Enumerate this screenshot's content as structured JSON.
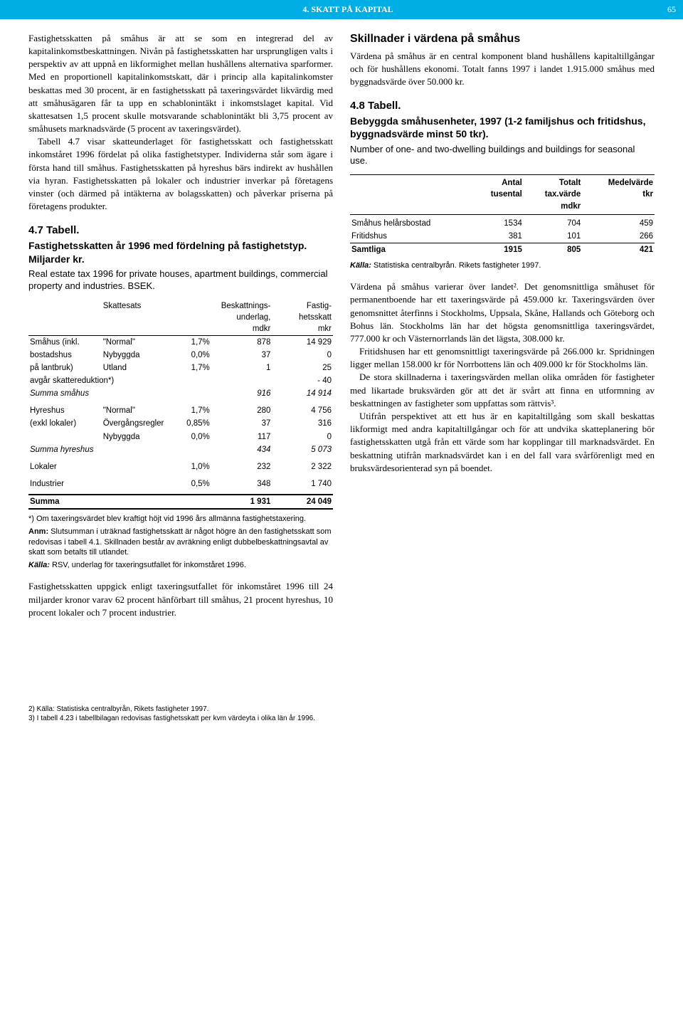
{
  "header": {
    "chapter_title": "4. SKATT PÅ KAPITAL",
    "page_number": "65"
  },
  "left_col": {
    "p1": "Fastighetsskatten på småhus är att se som en integrerad del av kapitalinkomstbeskattningen. Nivån på fastighetsskatten har ursprungligen valts i perspektiv av att uppnå en likformighet mellan hushållens alternativa sparformer. Med en proportionell kapitalinkomstskatt, där i princip alla kapitalinkomster beskattas med 30 procent, är en fastighetsskatt på taxeringsvärdet likvärdig med att småhusägaren får ta upp en schablonintäkt i inkomstslaget kapital. Vid skattesatsen 1,5 procent skulle motsvarande schablonintäkt bli 3,75 procent av småhusets marknadsvärde (5 procent av taxeringsvärdet).",
    "p2": "Tabell 4.7 visar skatteunderlaget för fastighetsskatt och fastighetsskatt inkomståret 1996 fördelat på olika fastighetstyper. Individerna står som ägare i första hand till småhus. Fastighetsskatten på hyreshus bärs indirekt av hushållen via hyran. Fastighetsskatten på lokaler och industrier inverkar på företagens vinster (och därmed på intäkterna av bolagsskatten) och påverkar priserna på företagens produkter.",
    "tbl47": {
      "title": "4.7 Tabell.",
      "subtitle": "Fastighetsskatten år 1996 med fördelning på fastighetstyp. Miljarder kr.",
      "desc": "Real estate tax 1996 for private houses, apartment buildings, commercial property and industries. BSEK.",
      "headers": {
        "c2": "Skattesats",
        "c3": "Beskattnings-\nunderlag,\nmdkr",
        "c4": "Fastig-\nhetsskatt\nmkr"
      },
      "rows": [
        {
          "a": "Småhus (inkl.",
          "b": "\"Normal\"",
          "c": "1,7%",
          "d": "878",
          "e": "14 929"
        },
        {
          "a": "bostadshus",
          "b": "Nybyggda",
          "c": "0,0%",
          "d": "37",
          "e": "0"
        },
        {
          "a": "på lantbruk)",
          "b": "Utland",
          "c": "1,7%",
          "d": "1",
          "e": "25"
        },
        {
          "a": "   avgår skattereduktion*)",
          "b": "",
          "c": "",
          "d": "",
          "e": "- 40",
          "span": 3
        },
        {
          "a": "Summa småhus",
          "b": "",
          "c": "",
          "d": "916",
          "e": "14 914",
          "italic": true,
          "span": 3
        },
        {
          "a": "",
          "b": "",
          "c": "",
          "d": "",
          "e": "",
          "blank": true
        },
        {
          "a": "Hyreshus",
          "b": "\"Normal\"",
          "c": "1,7%",
          "d": "280",
          "e": "4 756"
        },
        {
          "a": "(exkl lokaler)",
          "b": "Övergångsregler",
          "c": "0,85%",
          "d": "37",
          "e": "316"
        },
        {
          "a": "",
          "b": "Nybyggda",
          "c": "0,0%",
          "d": "117",
          "e": "0"
        },
        {
          "a": "Summa hyreshus",
          "b": "",
          "c": "",
          "d": "434",
          "e": "5 073",
          "italic": true,
          "span": 3
        },
        {
          "a": "",
          "b": "",
          "c": "",
          "d": "",
          "e": "",
          "blank": true
        },
        {
          "a": "Lokaler",
          "b": "",
          "c": "1,0%",
          "d": "232",
          "e": "2 322",
          "span": 2
        },
        {
          "a": "",
          "b": "",
          "c": "",
          "d": "",
          "e": "",
          "blank": true
        },
        {
          "a": "Industrier",
          "b": "",
          "c": "0,5%",
          "d": "348",
          "e": "1 740",
          "span": 2
        },
        {
          "a": "",
          "b": "",
          "c": "",
          "d": "",
          "e": "",
          "blank": true
        },
        {
          "a": "Summa",
          "b": "",
          "c": "",
          "d": "1 931",
          "e": "24 049",
          "total": true,
          "span": 3
        }
      ],
      "footnote": "*) Om taxeringsvärdet blev kraftigt höjt vid 1996 års allmänna fastighetstaxering.",
      "anm": "Anm: Slutsumman i uträknad fastighetsskatt är något högre än den fastighetsskatt som redovisas i tabell 4.1. Skillnaden består av avräkning enligt dubbelbeskattningsavtal av skatt som betalts till utlandet.",
      "source": "Källa: RSV, underlag för taxeringsutfallet för inkomståret 1996."
    },
    "p3": "Fastighetsskatten uppgick enligt taxeringsutfallet för inkomståret 1996 till 24 miljarder kronor varav 62 procent hänförbart till småhus, 21 procent hyreshus, 10 procent lokaler och 7 procent industrier."
  },
  "right_col": {
    "h1": "Skillnader i värdena på småhus",
    "p1": "Värdena på småhus är en central komponent bland hushållens kapitaltillgångar och för hushållens ekonomi. Totalt fanns 1997 i landet 1.915.000 småhus med byggnadsvärde över 50.000 kr.",
    "tbl48": {
      "title": "4.8 Tabell.",
      "subtitle": "Bebyggda småhusenheter, 1997 (1-2 familjshus och fritidshus, byggnadsvärde minst 50 tkr).",
      "desc": "Number of one- and two-dwelling buildings and buildings for seasonal use.",
      "headers": {
        "c1": "",
        "c2": "Antal\ntusental",
        "c3": "Totalt\ntax.värde\nmdkr",
        "c4": "Medelvärde\ntkr"
      },
      "rows": [
        {
          "a": "Småhus helårsbostad",
          "b": "1534",
          "c": "704",
          "d": "459"
        },
        {
          "a": "Fritidshus",
          "b": "381",
          "c": "101",
          "d": "266"
        },
        {
          "a": "Samtliga",
          "b": "1915",
          "c": "805",
          "d": "421",
          "bold": true
        }
      ],
      "source": "Källa: Statistiska centralbyrån. Rikets fastigheter 1997."
    },
    "p2": "Värdena på småhus varierar över landet². Det genomsnittliga småhuset för permanentboende har ett taxeringsvärde på 459.000 kr. Taxeringsvärden över genomsnittet återfinns i Stockholms, Uppsala, Skåne, Hallands och Göteborg och Bohus län. Stockholms län har det högsta genomsnittliga taxeringsvärdet, 777.000 kr och Västernorrlands län det lägsta, 308.000 kr.",
    "p3": "Fritidshusen har ett genomsnittligt taxeringsvärde på 266.000 kr. Spridningen ligger mellan 158.000 kr för Norrbottens län och 409.000 kr för Stockholms län.",
    "p4": "De stora skillnaderna i taxeringsvärden mellan olika områden för fastigheter med likartade bruksvärden gör att det är svårt att finna en utformning av beskattningen av fastigheter som uppfattas som rättvis³.",
    "p5": "Utifrån perspektivet att ett hus är en kapitaltillgång som skall beskattas likformigt med andra kapitaltillgångar och för att undvika skatteplanering bör fastighetsskatten utgå från ett värde som har kopplingar till marknadsvärdet. En beskattning utifrån marknadsvärdet kan i en del fall vara svårförenligt med en bruksvärdesorienterad syn på boendet."
  },
  "footnotes": {
    "f2": "2) Källa: Statistiska centralbyrån, Rikets fastigheter 1997.",
    "f3": "3) I tabell 4.23 i tabellbilagan redovisas fastighetsskatt per kvm värdeyta i olika län år 1996."
  }
}
